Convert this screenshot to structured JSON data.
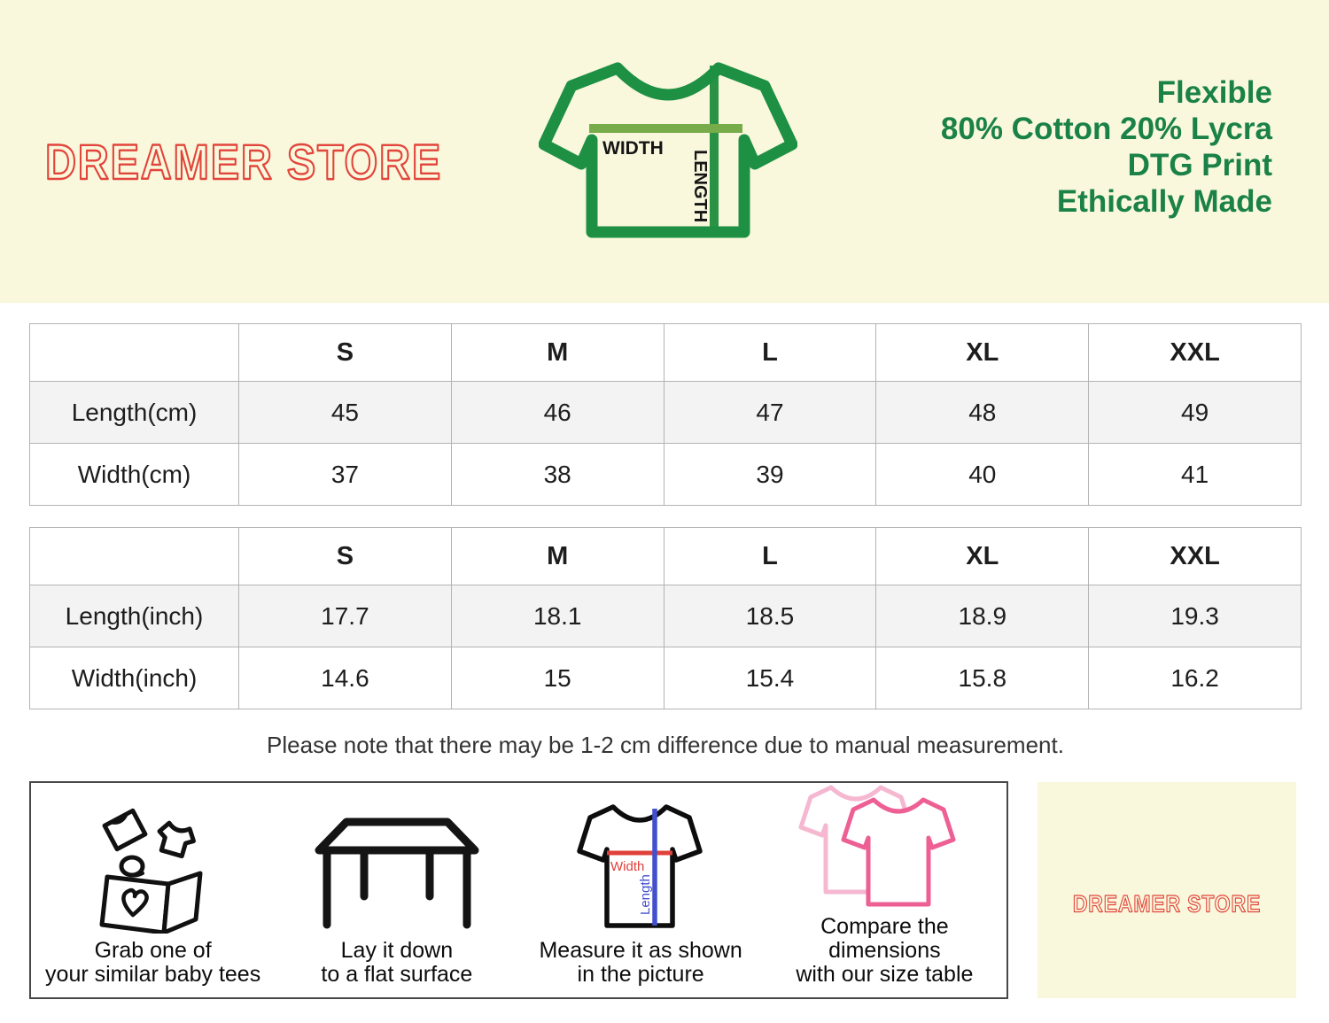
{
  "brand": {
    "name": "DREAMER STORE"
  },
  "header": {
    "features": [
      "Flexible",
      "80% Cotton 20% Lycra",
      "DTG Print",
      "Ethically Made"
    ]
  },
  "diagram": {
    "width_label": "WIDTH",
    "length_label": "LENGTH"
  },
  "tables": {
    "cm": {
      "headers": [
        "",
        "S",
        "M",
        "L",
        "XL",
        "XXL"
      ],
      "rows": [
        {
          "label": "Length(cm)",
          "values": [
            "45",
            "46",
            "47",
            "48",
            "49"
          ]
        },
        {
          "label": "Width(cm)",
          "values": [
            "37",
            "38",
            "39",
            "40",
            "41"
          ]
        }
      ]
    },
    "inch": {
      "headers": [
        "",
        "S",
        "M",
        "L",
        "XL",
        "XXL"
      ],
      "rows": [
        {
          "label": "Length(inch)",
          "values": [
            "17.7",
            "18.1",
            "18.5",
            "18.9",
            "19.3"
          ]
        },
        {
          "label": "Width(inch)",
          "values": [
            "14.6",
            "15",
            "15.4",
            "15.8",
            "16.2"
          ]
        }
      ]
    }
  },
  "note": "Please note that there may be 1-2 cm difference due to manual measurement.",
  "steps": [
    {
      "icon": "box-of-baby-tees-icon",
      "caption": [
        "Grab one of",
        "your similar baby tees"
      ]
    },
    {
      "icon": "table-icon",
      "caption": [
        "Lay it down",
        "to a flat surface"
      ]
    },
    {
      "icon": "measure-tee-icon",
      "caption": [
        "Measure it as shown",
        "in the picture"
      ],
      "width_label": "Width",
      "length_label": "Length"
    },
    {
      "icon": "compare-tees-icon",
      "caption": [
        "Compare the dimensions",
        "with our size table"
      ]
    }
  ],
  "colors": {
    "banner_cream": "#f9f8dd",
    "brand_red": "#e2453b",
    "tee_outline_green": "#1e9044",
    "width_line_olive": "#78ac4b",
    "length_line_green": "#2a9245",
    "features_green": "#1a8147",
    "measure_red": "#e0403a",
    "measure_blue": "#4250cf",
    "pink_front": "#ee5f94",
    "pink_back": "#f5b8d0",
    "table_shaded_row": "#f3f3f3"
  }
}
